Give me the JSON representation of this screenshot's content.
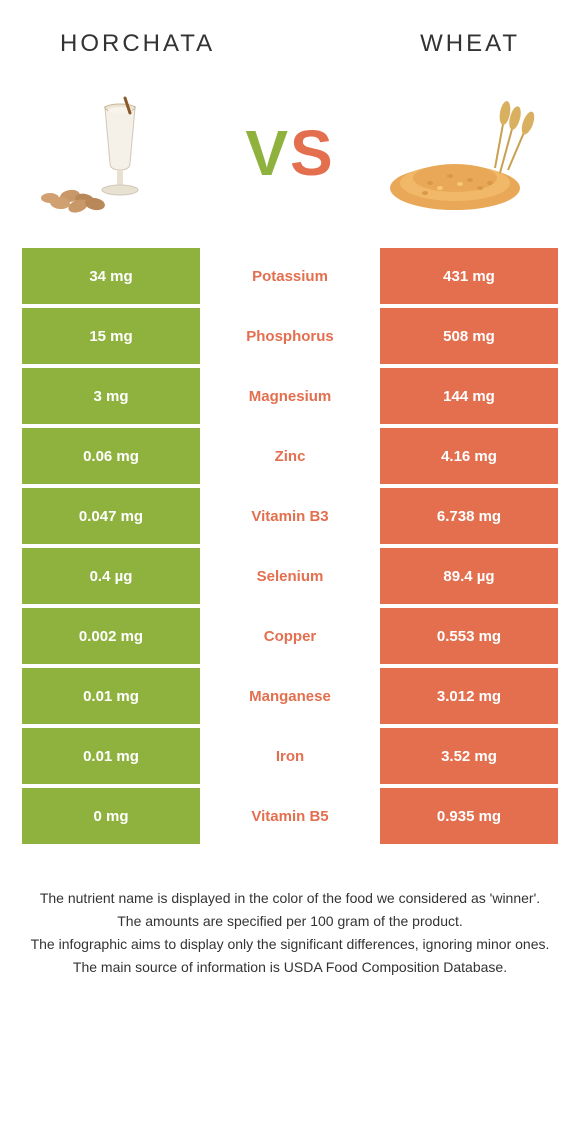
{
  "colors": {
    "left": "#8fb23f",
    "right": "#e36f4f",
    "vs_v": "#8fb23f",
    "vs_s": "#e36f4f"
  },
  "header": {
    "left_title": "HORCHATA",
    "right_title": "WHEAT"
  },
  "vs": {
    "v": "V",
    "s": "S"
  },
  "rows": [
    {
      "left": "34 mg",
      "nutrient": "Potassium",
      "right": "431 mg",
      "winner": "right"
    },
    {
      "left": "15 mg",
      "nutrient": "Phosphorus",
      "right": "508 mg",
      "winner": "right"
    },
    {
      "left": "3 mg",
      "nutrient": "Magnesium",
      "right": "144 mg",
      "winner": "right"
    },
    {
      "left": "0.06 mg",
      "nutrient": "Zinc",
      "right": "4.16 mg",
      "winner": "right"
    },
    {
      "left": "0.047 mg",
      "nutrient": "Vitamin B3",
      "right": "6.738 mg",
      "winner": "right"
    },
    {
      "left": "0.4 µg",
      "nutrient": "Selenium",
      "right": "89.4 µg",
      "winner": "right"
    },
    {
      "left": "0.002 mg",
      "nutrient": "Copper",
      "right": "0.553 mg",
      "winner": "right"
    },
    {
      "left": "0.01 mg",
      "nutrient": "Manganese",
      "right": "3.012 mg",
      "winner": "right"
    },
    {
      "left": "0.01 mg",
      "nutrient": "Iron",
      "right": "3.52 mg",
      "winner": "right"
    },
    {
      "left": "0 mg",
      "nutrient": "Vitamin B5",
      "right": "0.935 mg",
      "winner": "right"
    }
  ],
  "footer": {
    "line1": "The nutrient name is displayed in the color of the food we considered as 'winner'.",
    "line2": "The amounts are specified per 100 gram of the product.",
    "line3": "The infographic aims to display only the significant differences, ignoring minor ones.",
    "line4": "The main source of information is USDA Food Composition Database."
  }
}
